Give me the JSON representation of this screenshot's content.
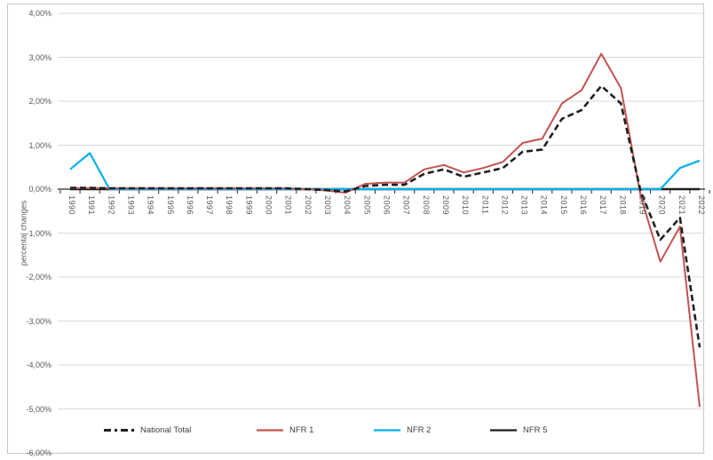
{
  "chart": {
    "y_axis_title": "percental changes",
    "y_tick_labels": [
      "4,00%",
      "3,00%",
      "2,00%",
      "1,00%",
      "0,00%",
      "-1,00%",
      "-2,00%",
      "-3,00%",
      "-4,00%",
      "-5,00%",
      "-6,00%"
    ],
    "y_tick_values": [
      4,
      3,
      2,
      1,
      0,
      -1,
      -2,
      -3,
      -4,
      -5,
      -6
    ],
    "colors": {
      "grid": "#d9d9d9",
      "axis": "#262626",
      "frame_border": "#c8c8c8",
      "tick_text": "#595959",
      "national_total": "#1f1f1f",
      "nfr1": "#c3524f",
      "nfr2": "#00b0f0",
      "nfr5": "#1f1f1f"
    }
  },
  "chart_data": {
    "type": "line",
    "title": "",
    "xlabel": "",
    "ylabel": "percental changes",
    "ylim": [
      -6,
      4
    ],
    "y_unit": "percent",
    "y_tick_step": 1,
    "grid": true,
    "legend_position": "bottom",
    "x": [
      1990,
      1991,
      1992,
      1993,
      1994,
      1995,
      1996,
      1997,
      1998,
      1999,
      2000,
      2001,
      2002,
      2003,
      2004,
      2005,
      2006,
      2007,
      2008,
      2009,
      2010,
      2011,
      2012,
      2013,
      2014,
      2015,
      2016,
      2017,
      2018,
      2019,
      2020,
      2021,
      2022
    ],
    "series": [
      {
        "name": "National Total",
        "color": "#1f1f1f",
        "style": "dashed",
        "values": [
          0.03,
          0.03,
          0.02,
          0.02,
          0.02,
          0.02,
          0.02,
          0.02,
          0.02,
          0.02,
          0.02,
          0.02,
          0.0,
          -0.02,
          -0.05,
          0.07,
          0.1,
          0.1,
          0.35,
          0.45,
          0.28,
          0.38,
          0.48,
          0.85,
          0.9,
          1.6,
          1.8,
          2.35,
          1.95,
          -0.05,
          -1.15,
          -0.65,
          -3.6
        ]
      },
      {
        "name": "NFR 1",
        "color": "#c3524f",
        "style": "solid",
        "values": [
          0.02,
          0.02,
          0.02,
          0.02,
          0.02,
          0.02,
          0.02,
          0.02,
          0.02,
          0.02,
          0.02,
          0.02,
          0.0,
          -0.03,
          -0.08,
          0.12,
          0.15,
          0.15,
          0.45,
          0.55,
          0.38,
          0.48,
          0.62,
          1.05,
          1.15,
          1.95,
          2.25,
          3.08,
          2.3,
          -0.15,
          -1.65,
          -0.85,
          -4.95
        ]
      },
      {
        "name": "NFR 2",
        "color": "#00b0f0",
        "style": "solid",
        "values": [
          0.45,
          0.82,
          0.0,
          0.0,
          0.0,
          0.0,
          0.0,
          0.0,
          0.0,
          0.0,
          0.0,
          0.0,
          0.0,
          0.0,
          0.0,
          0.0,
          0.0,
          0.0,
          0.0,
          0.0,
          0.0,
          0.0,
          0.0,
          0.0,
          0.0,
          0.0,
          0.0,
          0.0,
          0.0,
          0.0,
          0.0,
          0.48,
          0.65
        ]
      },
      {
        "name": "NFR 5",
        "color": "#1f1f1f",
        "style": "solid",
        "values": [
          0,
          0,
          0,
          0,
          0,
          0,
          0,
          0,
          0,
          0,
          0,
          0,
          0,
          0,
          0,
          0,
          0,
          0,
          0,
          0,
          0,
          0,
          0,
          0,
          0,
          0,
          0,
          0,
          0,
          0,
          0,
          0,
          0
        ]
      }
    ]
  }
}
